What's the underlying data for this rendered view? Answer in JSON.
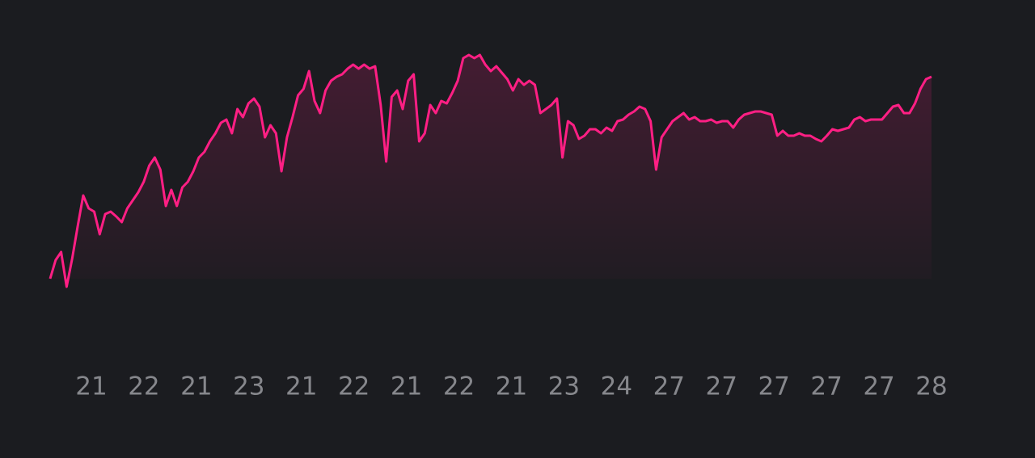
{
  "chart_data": {
    "type": "line",
    "color": "#ff1f84",
    "x_labels": [
      "21",
      "22",
      "21",
      "23",
      "21",
      "22",
      "21",
      "22",
      "21",
      "23",
      "24",
      "27",
      "27",
      "27",
      "27",
      "27",
      "28"
    ],
    "values": [
      55,
      78,
      88,
      45,
      80,
      120,
      158,
      142,
      138,
      110,
      135,
      138,
      132,
      125,
      142,
      152,
      162,
      175,
      195,
      205,
      190,
      145,
      165,
      145,
      168,
      175,
      188,
      205,
      212,
      225,
      235,
      248,
      252,
      235,
      265,
      255,
      272,
      278,
      268,
      230,
      245,
      235,
      188,
      230,
      255,
      282,
      290,
      312,
      275,
      260,
      288,
      300,
      305,
      308,
      315,
      320,
      315,
      320,
      315,
      318,
      270,
      200,
      280,
      288,
      265,
      300,
      308,
      225,
      235,
      270,
      260,
      275,
      272,
      285,
      300,
      328,
      332,
      328,
      332,
      320,
      312,
      318,
      310,
      302,
      288,
      302,
      295,
      300,
      295,
      260,
      265,
      270,
      278,
      205,
      250,
      245,
      228,
      232,
      240,
      240,
      235,
      242,
      238,
      250,
      252,
      258,
      262,
      268,
      265,
      250,
      190,
      230,
      240,
      250,
      255,
      260,
      252,
      255,
      250,
      250,
      252,
      248,
      250,
      250,
      242,
      252,
      258,
      260,
      262,
      262,
      260,
      258,
      232,
      238,
      232,
      232,
      235,
      232,
      232,
      228,
      225,
      232,
      240,
      238,
      240,
      242,
      252,
      255,
      250,
      252,
      252,
      252,
      260,
      268,
      270,
      260,
      260,
      272,
      290,
      302,
      305
    ]
  }
}
